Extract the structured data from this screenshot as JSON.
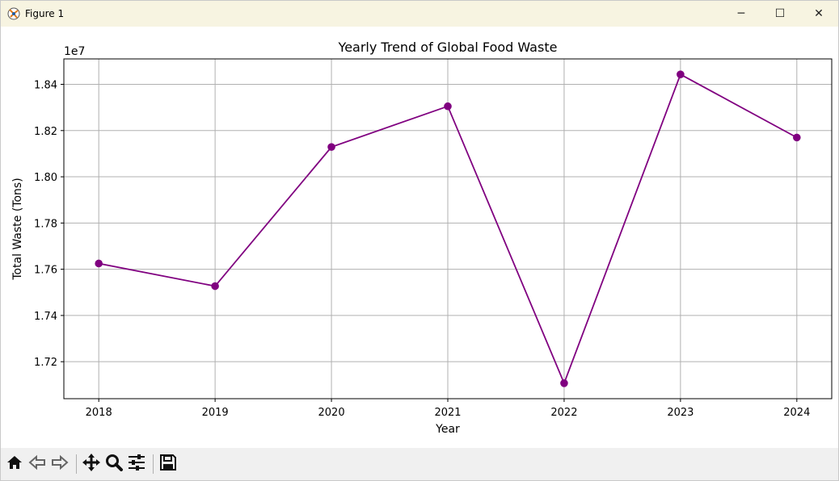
{
  "window": {
    "title": "Figure 1",
    "controls": {
      "minimize": "─",
      "maximize": "☐",
      "close": "✕"
    }
  },
  "chart_data": {
    "type": "line",
    "title": "Yearly Trend of Global Food Waste",
    "xlabel": "Year",
    "ylabel": "Total Waste (Tons)",
    "y_offset_label": "1e7",
    "x": [
      2018,
      2019,
      2020,
      2021,
      2022,
      2023,
      2024
    ],
    "x_tick_labels": [
      "2018",
      "2019",
      "2020",
      "2021",
      "2022",
      "2023",
      "2024"
    ],
    "y": [
      17625000,
      17527000,
      18129000,
      18305000,
      17107000,
      18443000,
      18170000
    ],
    "y_ticks": [
      17200000,
      17400000,
      17600000,
      17800000,
      18000000,
      18200000,
      18400000
    ],
    "y_tick_labels": [
      "1.72",
      "1.74",
      "1.76",
      "1.78",
      "1.80",
      "1.82",
      "1.84"
    ],
    "ylim": [
      17040000,
      18510000
    ],
    "xlim": [
      2017.7,
      2024.3
    ],
    "grid": true,
    "line_color": "#800080",
    "marker": "circle"
  },
  "toolbar": {
    "buttons": [
      "home-icon",
      "back-icon",
      "forward-icon",
      "pan-icon",
      "zoom-icon",
      "configure-subplots-icon",
      "save-icon"
    ]
  }
}
